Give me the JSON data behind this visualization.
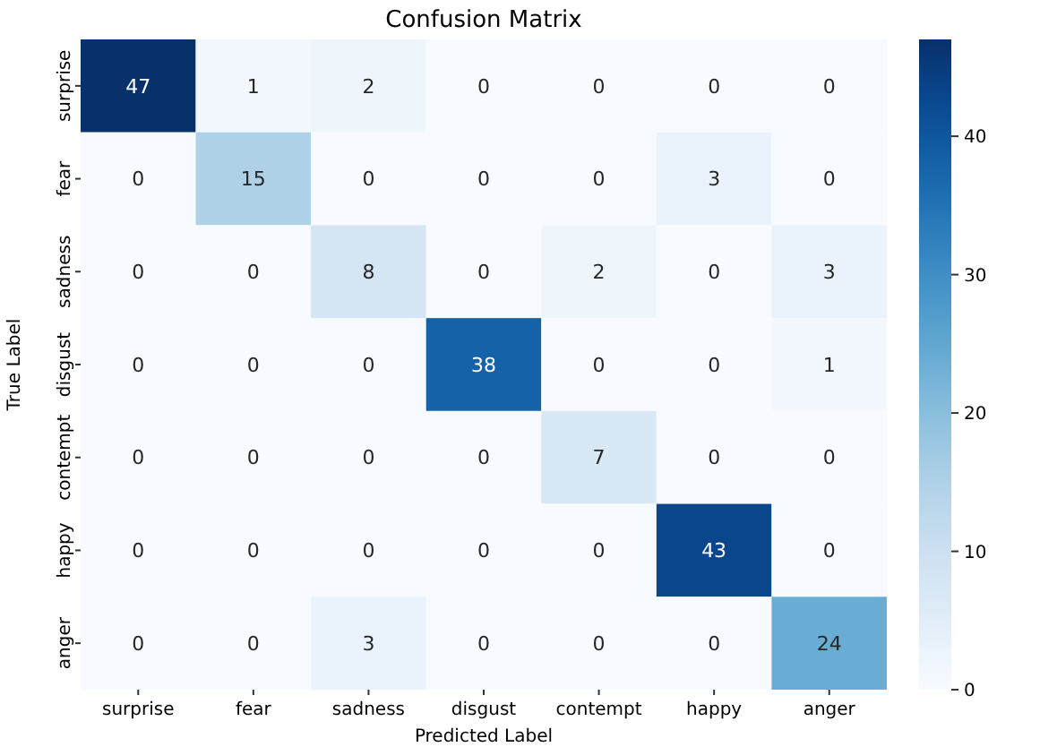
{
  "chart_data": {
    "type": "heatmap",
    "title": "Confusion Matrix",
    "xlabel": "Predicted Label",
    "ylabel": "True Label",
    "categories": [
      "surprise",
      "fear",
      "sadness",
      "disgust",
      "contempt",
      "happy",
      "anger"
    ],
    "y_categories": [
      "surprise",
      "fear",
      "sadness",
      "disgust",
      "contempt",
      "happy",
      "anger"
    ],
    "cells": [
      [
        47,
        1,
        2,
        0,
        0,
        0,
        0
      ],
      [
        0,
        15,
        0,
        0,
        0,
        3,
        0
      ],
      [
        0,
        0,
        8,
        0,
        2,
        0,
        3
      ],
      [
        0,
        0,
        0,
        38,
        0,
        0,
        1
      ],
      [
        0,
        0,
        0,
        0,
        7,
        0,
        0
      ],
      [
        0,
        0,
        0,
        0,
        0,
        43,
        0
      ],
      [
        0,
        0,
        3,
        0,
        0,
        0,
        24
      ]
    ],
    "clim": [
      0,
      47
    ],
    "cticks": [
      0,
      10,
      20,
      30,
      40
    ],
    "data_labels": true
  }
}
